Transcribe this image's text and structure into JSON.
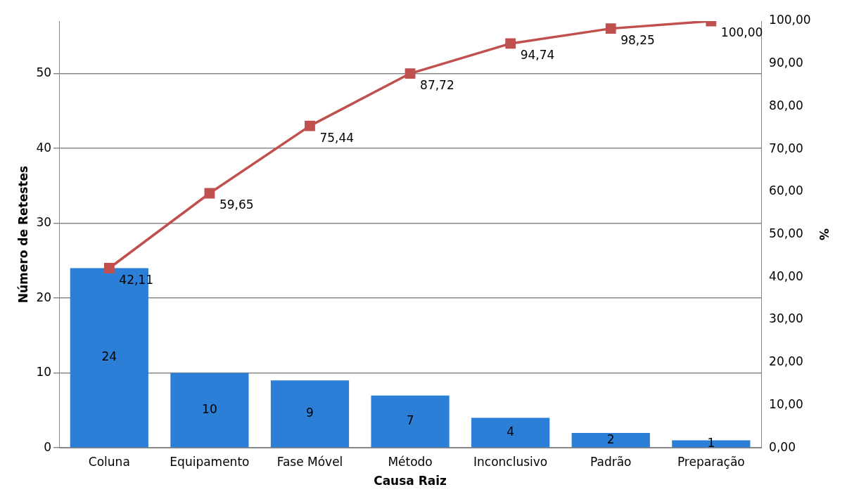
{
  "chart_data": {
    "type": "bar",
    "xlabel": "Causa Raiz",
    "ylabel": "Número de Retestes",
    "y2label": "%",
    "categories": [
      "Coluna",
      "Equipamento",
      "Fase Móvel",
      "Método",
      "Inconclusivo",
      "Padrão",
      "Preparação"
    ],
    "series": [
      {
        "color": "#2b7fd6",
        "values": [
          24,
          10,
          9,
          7,
          4,
          2,
          1
        ],
        "value_labels": [
          "24",
          "10",
          "9",
          "7",
          "4",
          "2",
          "1"
        ]
      },
      {
        "type": "line",
        "axis": "y2",
        "color": "#c0504d",
        "marker": "square",
        "values": [
          42.11,
          59.65,
          75.44,
          87.72,
          94.74,
          98.25,
          100.0
        ],
        "value_labels": [
          "42,11",
          "59,65",
          "75,44",
          "87,72",
          "94,74",
          "98,25",
          "100,00"
        ]
      }
    ],
    "ylim": [
      0,
      57
    ],
    "yticks": [
      0,
      10,
      20,
      30,
      40,
      50
    ],
    "y2lim": [
      0,
      100
    ],
    "y2ticks": [
      {
        "value": 0,
        "label": "0,00"
      },
      {
        "value": 10,
        "label": "10,00"
      },
      {
        "value": 20,
        "label": "20,00"
      },
      {
        "value": 30,
        "label": "30,00"
      },
      {
        "value": 40,
        "label": "40,00"
      },
      {
        "value": 50,
        "label": "50,00"
      },
      {
        "value": 60,
        "label": "60,00"
      },
      {
        "value": 70,
        "label": "70,00"
      },
      {
        "value": 80,
        "label": "80,00"
      },
      {
        "value": 90,
        "label": "90,00"
      },
      {
        "value": 100,
        "label": "100,00"
      }
    ],
    "grid": "y",
    "legend": false
  }
}
